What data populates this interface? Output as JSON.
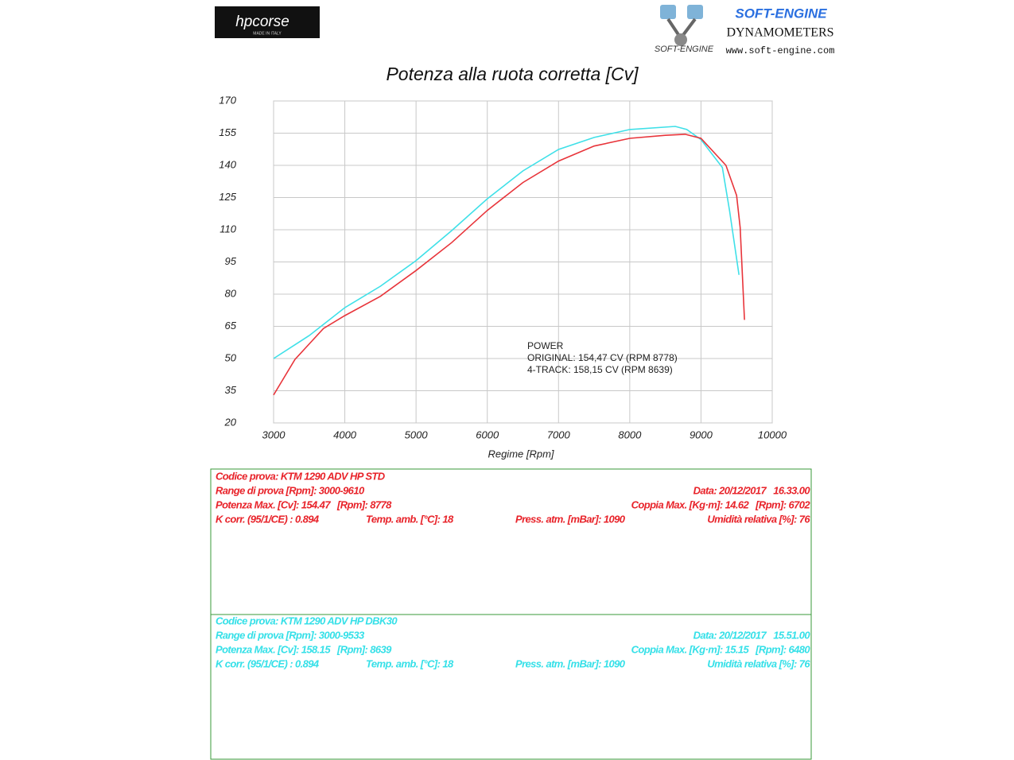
{
  "header": {
    "left_logo": {
      "brand": "hpcorse",
      "tagline": "MADE IN ITALY"
    },
    "right_logo": {
      "brand": "SOFT-ENGINE",
      "subtitle": "DYNAMOMETERS",
      "url": "www.soft-engine.com",
      "mark": "SOFT-ENGINE"
    }
  },
  "chart_data": {
    "type": "line",
    "title": "Potenza alla ruota corretta [Cv]",
    "x_label": "Regime [Rpm]",
    "xlim": [
      3000,
      10000
    ],
    "xticks": [
      3000,
      4000,
      5000,
      6000,
      7000,
      8000,
      9000,
      10000
    ],
    "ylim": [
      20,
      170
    ],
    "yticks": [
      20,
      35,
      50,
      65,
      80,
      95,
      110,
      125,
      140,
      155,
      170
    ],
    "grid": true,
    "annotation": [
      "POWER",
      "ORIGINAL: 154,47 CV (RPM 8778)",
      "4-TRACK: 158,15 CV (RPM 8639)"
    ],
    "series": [
      {
        "color": "#e8343a",
        "x": [
          3000,
          3300,
          3700,
          4000,
          4500,
          5000,
          5500,
          6000,
          6500,
          7000,
          7500,
          8000,
          8500,
          8778,
          9000,
          9350,
          9500,
          9550,
          9610
        ],
        "values": [
          33,
          49.6,
          64,
          70,
          79,
          91,
          104,
          119,
          132,
          142,
          149,
          152.6,
          154,
          154.47,
          152.6,
          140,
          126,
          111,
          68
        ]
      },
      {
        "color": "#3fe0e8",
        "x": [
          3000,
          3500,
          4000,
          4500,
          5000,
          5500,
          6000,
          6500,
          7000,
          7500,
          8000,
          8639,
          8800,
          9000,
          9300,
          9400,
          9533
        ],
        "values": [
          50,
          60.7,
          73.7,
          83.7,
          95.6,
          109.6,
          124.4,
          137.4,
          147.4,
          153,
          156.7,
          158.15,
          156.7,
          152,
          139,
          119,
          89
        ]
      }
    ]
  },
  "info_boxes": [
    {
      "color": "#e8232a",
      "rows": [
        [
          "Codice prova: KTM 1290 ADV HP STD"
        ],
        [
          "Range di prova [Rpm]: 3000-9610",
          "Data: 20/12/2017   16.33.00"
        ],
        [
          "Potenza Max. [Cv]: 154.47   [Rpm]: 8778",
          "Coppia Max. [Kg·m]: 14.62   [Rpm]: 6702"
        ],
        [
          "K corr. (95/1/CE) : 0.894",
          "Temp. amb. [°C]: 18",
          "Press. atm. [mBar]: 1090",
          "Umidità relativa [%]: 76"
        ]
      ]
    },
    {
      "color": "#35e0e8",
      "rows": [
        [
          "Codice prova: KTM 1290 ADV HP DBK30"
        ],
        [
          "Range di prova [Rpm]: 3000-9533",
          "Data: 20/12/2017   15.51.00"
        ],
        [
          "Potenza Max. [Cv]: 158.15   [Rpm]: 8639",
          "Coppia Max. [Kg·m]: 15.15   [Rpm]: 6480"
        ],
        [
          "K corr. (95/1/CE) : 0.894",
          "Temp. amb. [°C]: 18",
          "Press. atm. [mBar]: 1090",
          "Umidità relativa [%]: 76"
        ]
      ]
    }
  ]
}
